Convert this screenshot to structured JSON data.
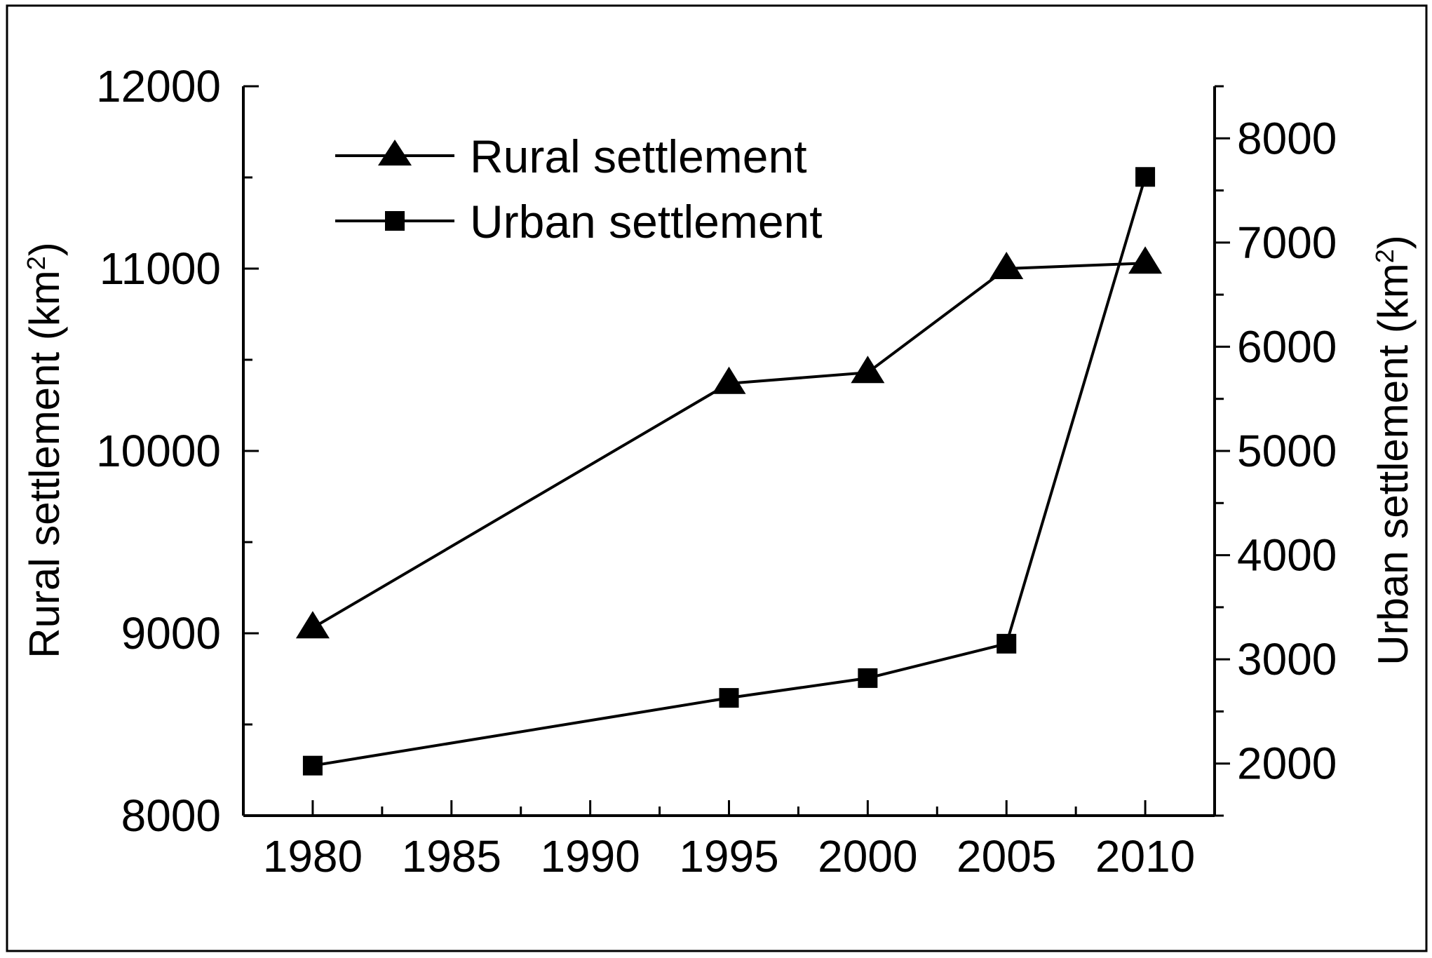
{
  "chart_data": {
    "type": "line",
    "x": [
      1980,
      1995,
      2000,
      2005,
      2010
    ],
    "xlim": [
      1977.5,
      2012.5
    ],
    "xticks": [
      1980,
      1985,
      1990,
      1995,
      2000,
      2005,
      2010
    ],
    "tick_labels_x": [
      "1980",
      "1985",
      "1990",
      "1995",
      "2000",
      "2005",
      "2010"
    ],
    "y_left": {
      "label": "Rural settlement (km",
      "label_sup": "2",
      "label_close": ")",
      "ylim": [
        8000,
        12000
      ],
      "ticks": [
        8000,
        9000,
        10000,
        11000,
        12000
      ],
      "tick_labels": [
        "8000",
        "9000",
        "10000",
        "11000",
        "12000"
      ]
    },
    "y_right": {
      "label": "Urban settlement (km",
      "label_sup": "2",
      "label_close": ")",
      "ylim": [
        1500,
        8500
      ],
      "ticks": [
        2000,
        3000,
        4000,
        5000,
        6000,
        7000,
        8000
      ],
      "tick_labels": [
        "2000",
        "3000",
        "4000",
        "5000",
        "6000",
        "7000",
        "8000"
      ]
    },
    "series": [
      {
        "name": "Rural settlement",
        "axis": "left",
        "marker": "triangle",
        "color": "#000000",
        "values": [
          9030,
          10370,
          10430,
          11000,
          11030
        ]
      },
      {
        "name": "Urban settlement",
        "axis": "right",
        "marker": "square",
        "color": "#000000",
        "values": [
          1980,
          2630,
          2820,
          3150,
          7630
        ]
      }
    ],
    "legend_position": "top-left",
    "grid": false
  }
}
